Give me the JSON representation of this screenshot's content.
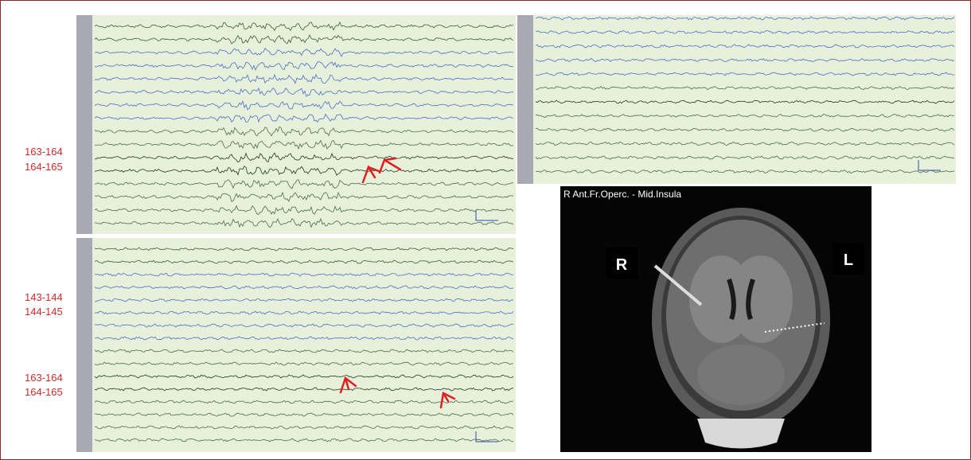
{
  "panels": {
    "top_left": {
      "channel_labels": [
        "163-164",
        "164-165"
      ]
    },
    "bottom_left": {
      "channel_labels": [
        "143-144",
        "144-145",
        "163-164",
        "164-165"
      ]
    },
    "mri": {
      "title": "R Ant.Fr.Operc. - Mid.Insula",
      "left_side": "R",
      "right_side": "L"
    }
  }
}
